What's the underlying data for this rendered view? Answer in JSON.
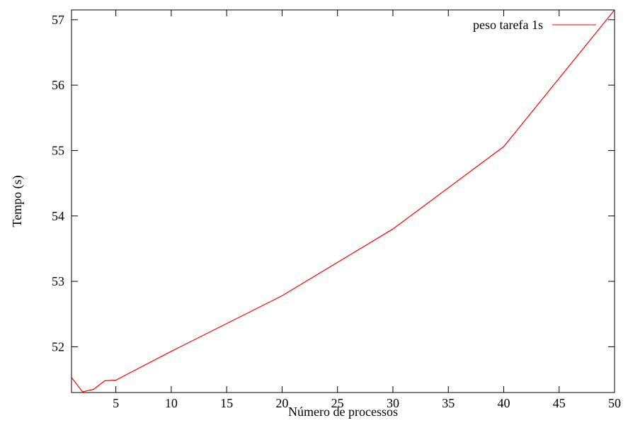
{
  "chart_data": {
    "type": "line",
    "title": "",
    "xlabel": "Número de processos",
    "ylabel": "Tempo (s)",
    "xlim": [
      1,
      50
    ],
    "ylim": [
      51.3,
      57.15
    ],
    "xticks": [
      5,
      10,
      15,
      20,
      25,
      30,
      35,
      40,
      45,
      50
    ],
    "yticks": [
      52,
      53,
      54,
      55,
      56,
      57
    ],
    "grid": false,
    "legend_position": "top-right",
    "series": [
      {
        "name": "peso tarefa 1s",
        "color": "#ff0000",
        "x": [
          1,
          2,
          3,
          4,
          5,
          10,
          20,
          30,
          40,
          50
        ],
        "y": [
          51.53,
          51.31,
          51.35,
          51.48,
          51.49,
          51.93,
          52.78,
          53.8,
          55.06,
          57.15
        ]
      }
    ]
  }
}
